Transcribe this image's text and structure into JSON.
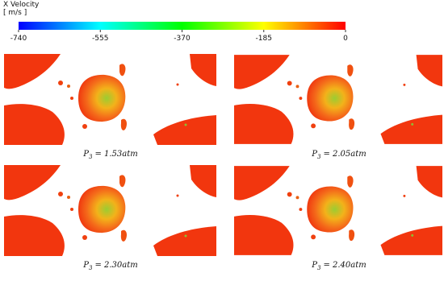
{
  "colorbar": {
    "title": "X Velocity",
    "unit": "[ m/s ]",
    "lim": [
      -740,
      0
    ],
    "ticks": [
      -740,
      -555,
      -370,
      -185,
      0
    ],
    "colors": [
      "#0000ff",
      "#00ffff",
      "#00ff00",
      "#ffff00",
      "#ff0000"
    ]
  },
  "panels": [
    {
      "symbol": "P",
      "subscript": "3",
      "text": "= 1.53atm"
    },
    {
      "symbol": "P",
      "subscript": "3",
      "text": "= 2.05atm"
    },
    {
      "symbol": "P",
      "subscript": "3",
      "text": "= 2.30atm"
    },
    {
      "symbol": "P",
      "subscript": "3",
      "text": "= 2.40atm"
    }
  ]
}
